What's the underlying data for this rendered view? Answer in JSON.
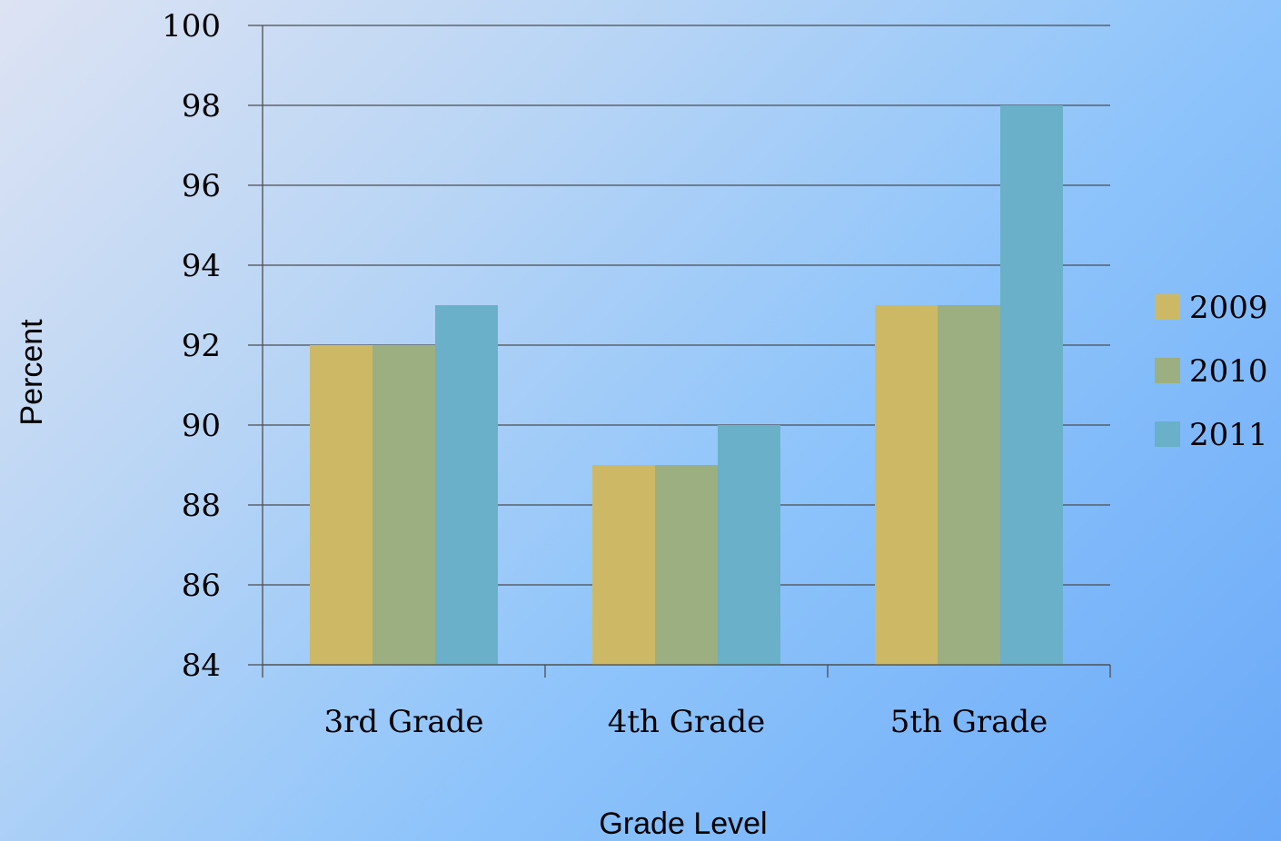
{
  "chart_data": {
    "type": "bar",
    "title": "",
    "xlabel": "Grade Level",
    "ylabel": "Percent",
    "categories": [
      "3rd Grade",
      "4th Grade",
      "5th Grade"
    ],
    "series": [
      {
        "name": "2009",
        "values": [
          92,
          89,
          93
        ],
        "color": "#cdb965"
      },
      {
        "name": "2010",
        "values": [
          92,
          89,
          93
        ],
        "color": "#9caf80"
      },
      {
        "name": "2011",
        "values": [
          93,
          90,
          98
        ],
        "color": "#69b0c8"
      }
    ],
    "ylim": [
      84,
      100
    ],
    "yticks": [
      84,
      86,
      88,
      90,
      92,
      94,
      96,
      98,
      100
    ],
    "grid": true,
    "legend": "right"
  }
}
